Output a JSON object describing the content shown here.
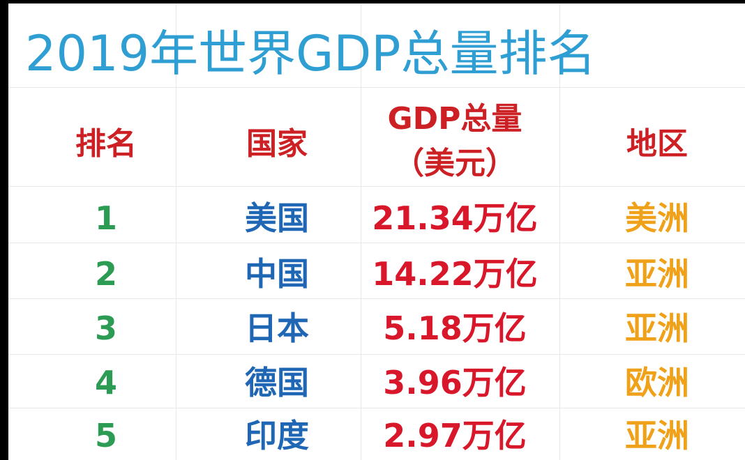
{
  "chart_data": {
    "type": "table",
    "title": "2019年世界GDP总量排名",
    "columns": {
      "rank": "排名",
      "country": "国家",
      "gdp_line1": "GDP总量",
      "gdp_line2": "（美元）",
      "region": "地区"
    },
    "rows": [
      {
        "rank": "1",
        "country": "美国",
        "gdp": "21.34万亿",
        "region": "美洲"
      },
      {
        "rank": "2",
        "country": "中国",
        "gdp": "14.22万亿",
        "region": "亚洲"
      },
      {
        "rank": "3",
        "country": "日本",
        "gdp": "5.18万亿",
        "region": "亚洲"
      },
      {
        "rank": "4",
        "country": "德国",
        "gdp": "3.96万亿",
        "region": "欧洲"
      },
      {
        "rank": "5",
        "country": "印度",
        "gdp": "2.97万亿",
        "region": "亚洲"
      }
    ],
    "colors": {
      "title": "#2f9fd3",
      "header": "#cc2024",
      "rank": "#2c9b54",
      "country": "#1f66b5",
      "gdp": "#d8182a",
      "region": "#f0a11a"
    }
  }
}
